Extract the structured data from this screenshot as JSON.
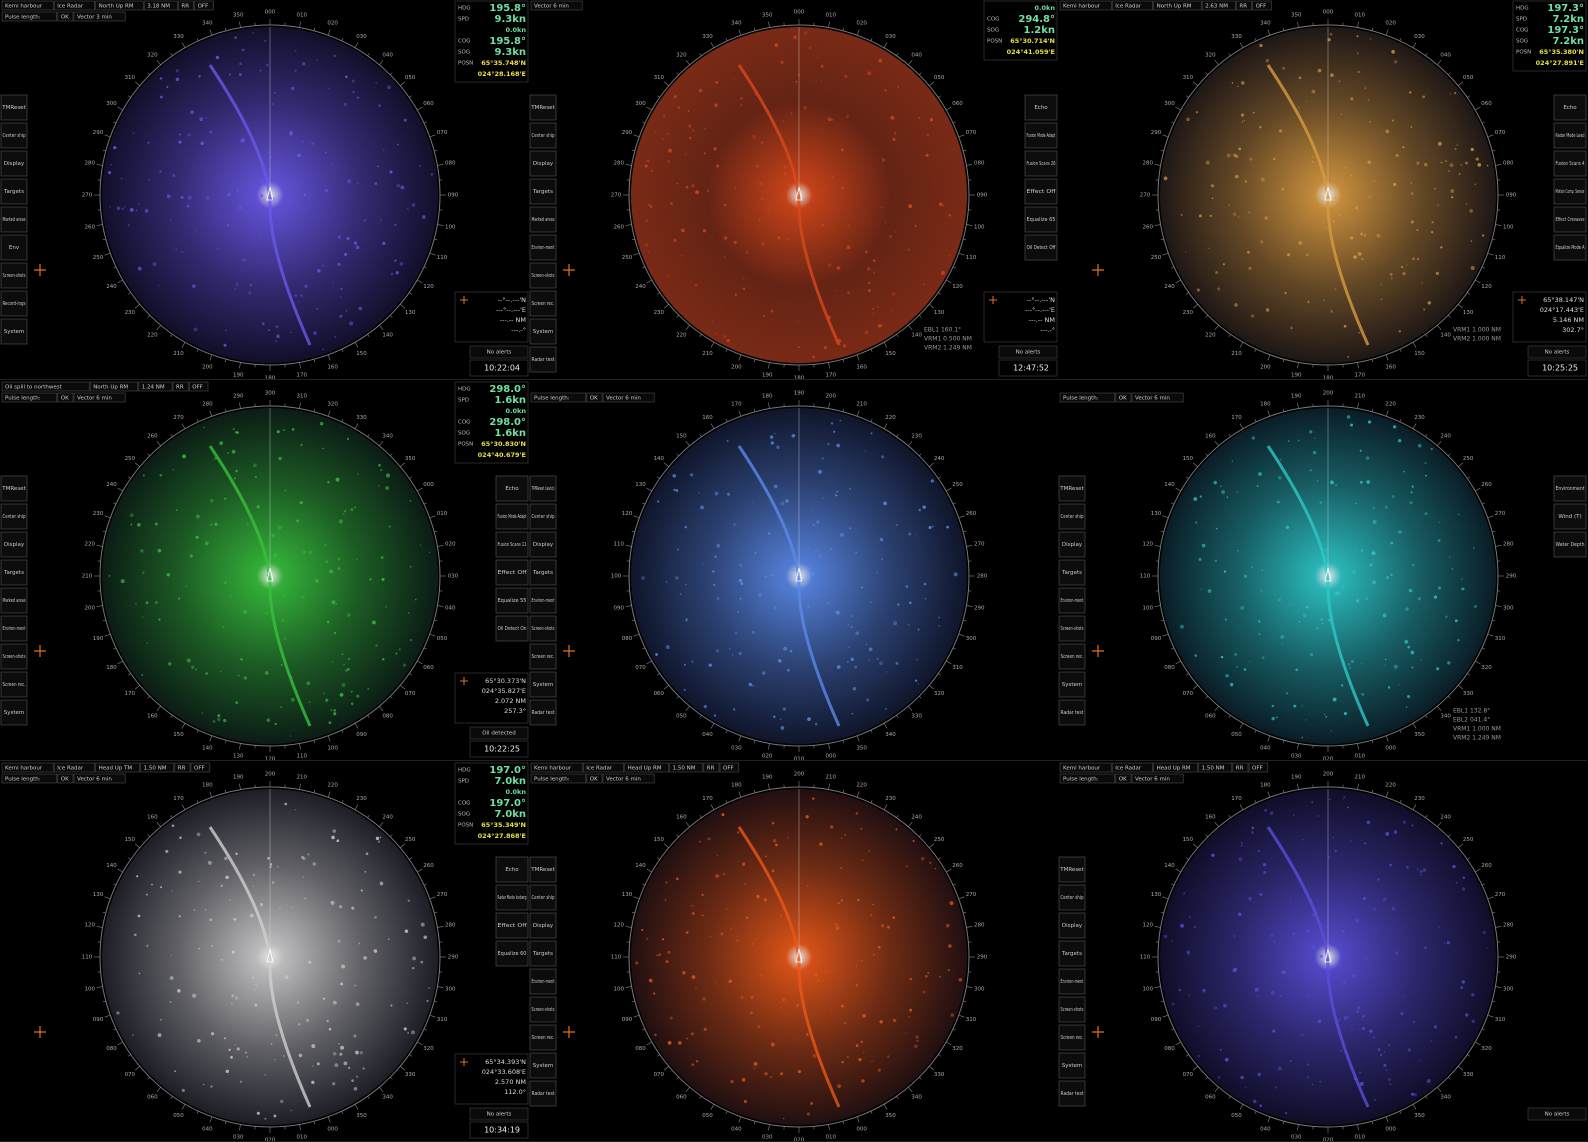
{
  "panels": [
    {
      "color": "#6a58e8",
      "compass_labels": [
        "000",
        "010",
        "020",
        "030",
        "040",
        "050",
        "060",
        "070",
        "080",
        "090",
        "100",
        "110",
        "120",
        "130",
        "140",
        "150",
        "160",
        "170",
        "180",
        "190",
        "200",
        "210",
        "220",
        "230",
        "240",
        "250",
        "260",
        "270",
        "280",
        "290",
        "300",
        "310",
        "320",
        "330",
        "340",
        "350"
      ],
      "top_bar": [
        "Kemi harbour",
        "Ice Radar",
        "North Up RM",
        "3.18 NM",
        "RR",
        "OFF"
      ],
      "pulse": [
        "Pulse length:",
        "OK",
        "Vector 3 min"
      ],
      "info": [
        {
          "label": "HDG",
          "value": "195.8°"
        },
        {
          "label": "SPD",
          "value": "9.3kn"
        },
        {
          "value": "0.0kn"
        },
        {
          "label": "COG",
          "value": "195.8°"
        },
        {
          "label": "SOG",
          "value": "9.3kn"
        },
        {
          "label": "POSN",
          "value": "65°35.748'N"
        },
        {
          "value": "024°28.168'E"
        }
      ],
      "menu": [
        "TMReset",
        "Center ship",
        "Display",
        "Targets",
        "Marked areas",
        "Env",
        "Screen-shots",
        "Record-ings",
        "System"
      ],
      "cursor": [
        "--°--.---'N",
        "---°--.---'E",
        "---.-- NM",
        "---.-°"
      ],
      "status": "No alerts",
      "time": "10:22:04"
    },
    {
      "color": "#d8481a",
      "compass_labels": [
        "000",
        "010",
        "020",
        "030",
        "040",
        "050",
        "060",
        "070",
        "080",
        "090",
        "100",
        "110",
        "120",
        "130",
        "140",
        "150",
        "160",
        "170",
        "180",
        "190",
        "200",
        "210",
        "220",
        "230",
        "240",
        "250",
        "260",
        "270",
        "280",
        "290",
        "300",
        "310",
        "320",
        "330",
        "340",
        "350"
      ],
      "top_bar": [
        "Vector 6 min"
      ],
      "info": [
        {
          "value": "0.0kn"
        },
        {
          "label": "COG",
          "value": "294.8°"
        },
        {
          "label": "SOG",
          "value": "1.2kn"
        },
        {
          "label": "POSN",
          "value": "65°30.714'N"
        },
        {
          "value": "024°41.059'E"
        }
      ],
      "menu": [
        "TMReset",
        "Center ship",
        "Display",
        "Targets",
        "Marked areas",
        "Environ-ment",
        "Screen-shots",
        "Screen rec.",
        "System",
        "Radar test"
      ],
      "side_menu": [
        "Echo",
        "Fusion Mode Adapt",
        "Fusion Scans 26",
        "Effect Off",
        "Equalize 65",
        "Oil Detect Off"
      ],
      "cursor": [
        "--°--.---'N",
        "---°--.---'E",
        "---.-- NM",
        "---.-°"
      ],
      "extra": [
        "EBL1 160.1°",
        "VRM1 0.500 NM",
        "VRM2 1.249 NM"
      ],
      "status": "No alerts",
      "time": "12:47:52"
    },
    {
      "color": "#d89a40",
      "compass_labels": [
        "000",
        "010",
        "020",
        "030",
        "040",
        "050",
        "060",
        "070",
        "080",
        "090",
        "100",
        "110",
        "120",
        "130",
        "140",
        "150",
        "160",
        "170",
        "180",
        "190",
        "200",
        "210",
        "220",
        "230",
        "240",
        "250",
        "260",
        "270",
        "280",
        "290",
        "300",
        "310",
        "320",
        "330",
        "340",
        "350"
      ],
      "top_bar": [
        "Kemi harbour",
        "Ice Radar",
        "North Up RM",
        "2.63 NM",
        "RR",
        "OFF"
      ],
      "info": [
        {
          "label": "HDG",
          "value": "197.3°"
        },
        {
          "label": "SPD",
          "value": "7.2kn"
        },
        {
          "label": "COG",
          "value": "197.3°"
        },
        {
          "label": "SOG",
          "value": "7.2kn"
        },
        {
          "label": "POSN",
          "value": "65°35.380'N"
        },
        {
          "value": "024°27.891'E"
        }
      ],
      "side_menu": [
        "Echo",
        "Radar Mode Lead",
        "Fusion Scans 4",
        "Motion Comp. Sensor",
        "Effect Crevasse",
        "Equalize Mode A"
      ],
      "cursor": [
        "65°38.147'N",
        "024°17.443'E",
        "5.146 NM",
        "302.7°"
      ],
      "extra": [
        "VRM1 1.000 NM",
        "VRM2 1.000 NM"
      ],
      "status": "No alerts",
      "time": "10:25:25"
    },
    {
      "color": "#38c03c",
      "compass_labels": [
        "300",
        "310",
        "320",
        "330",
        "340",
        "350",
        "000",
        "010",
        "020",
        "030",
        "040",
        "050",
        "060",
        "070",
        "080",
        "090",
        "100",
        "110",
        "120",
        "130",
        "140",
        "150",
        "160",
        "170",
        "180",
        "190",
        "200",
        "210",
        "220",
        "230",
        "240",
        "250",
        "260",
        "270",
        "280",
        "290"
      ],
      "top_bar": [
        "Oil spill to northwest",
        "North Up RM",
        "1.24 NM",
        "RR",
        "OFF"
      ],
      "pulse": [
        "Pulse length:",
        "OK",
        "Vector 6 min"
      ],
      "info": [
        {
          "label": "HDG",
          "value": "298.0°"
        },
        {
          "label": "SPD",
          "value": "1.6kn"
        },
        {
          "value": "0.0kn"
        },
        {
          "label": "COG",
          "value": "298.0°"
        },
        {
          "label": "SOG",
          "value": "1.6kn"
        },
        {
          "label": "POSN",
          "value": "65°30.830'N"
        },
        {
          "value": "024°40.679'E"
        }
      ],
      "menu": [
        "TMReset",
        "Center ship",
        "Display",
        "Targets",
        "Marked areas",
        "Environ-ment",
        "Screen-shots",
        "Screen rec.",
        "System"
      ],
      "side_menu": [
        "Echo",
        "Fusion Mode Adapt",
        "Fusion Scans 11",
        "Effect Off",
        "Equalize 55",
        "Oil Detect On"
      ],
      "cursor": [
        "65°30.373'N",
        "024°35.827'E",
        "2.072 NM",
        "257.3°"
      ],
      "status": "Oil detected",
      "time": "10:22:25"
    },
    {
      "color": "#5a8ae8",
      "compass_labels": [
        "190",
        "200",
        "210",
        "220",
        "230",
        "240",
        "250",
        "260",
        "270",
        "280",
        "290",
        "300",
        "310",
        "320",
        "330",
        "340",
        "350",
        "000",
        "010",
        "020",
        "030",
        "040",
        "050",
        "060",
        "070",
        "080",
        "090",
        "100",
        "110",
        "120",
        "130",
        "140",
        "150",
        "160",
        "170",
        "180"
      ],
      "pulse": [
        "Pulse length:",
        "OK",
        "Vector 6 min"
      ],
      "menu": [
        "TMReset (auto)",
        "Center ship",
        "Display",
        "Targets",
        "Environ-ment",
        "Screen-shots",
        "Screen rec.",
        "System",
        "Radar test"
      ]
    },
    {
      "color": "#2ec8c8",
      "compass_labels": [
        "200",
        "210",
        "220",
        "230",
        "240",
        "250",
        "260",
        "270",
        "280",
        "290",
        "300",
        "310",
        "320",
        "330",
        "340",
        "350",
        "000",
        "010",
        "020",
        "030",
        "040",
        "050",
        "060",
        "070",
        "080",
        "090",
        "100",
        "110",
        "120",
        "130",
        "140",
        "150",
        "160",
        "170",
        "180",
        "190"
      ],
      "pulse": [
        "Pulse length:",
        "OK",
        "Vector 6 min"
      ],
      "menu": [
        "TMReset",
        "Center ship",
        "Display",
        "Targets",
        "Environ-ment",
        "Screen-shots",
        "Screen rec.",
        "System",
        "Radar test"
      ],
      "side_menu": [
        "Environment",
        "Wind (T)",
        "Water Depth"
      ],
      "extra": [
        "EBL1 132.8°",
        "EBL2 041.4°",
        "VRM1 1.000 NM",
        "VRM2 1.249 NM"
      ]
    },
    {
      "color": "#cfcfcf",
      "compass_labels": [
        "200",
        "210",
        "220",
        "230",
        "240",
        "250",
        "260",
        "270",
        "280",
        "290",
        "300",
        "310",
        "320",
        "330",
        "340",
        "350",
        "000",
        "010",
        "020",
        "030",
        "040",
        "050",
        "060",
        "070",
        "080",
        "090",
        "100",
        "110",
        "120",
        "130",
        "140",
        "150",
        "160",
        "170",
        "180",
        "190"
      ],
      "top_bar": [
        "Kemi harbour",
        "Ice Radar",
        "Head Up TM",
        "1.50 NM",
        "RR",
        "OFF"
      ],
      "pulse": [
        "Pulse length:",
        "OK",
        "Vector 6 min"
      ],
      "info": [
        {
          "label": "HDG",
          "value": "197.0°"
        },
        {
          "label": "SPD",
          "value": "7.0kn"
        },
        {
          "value": "0.0kn"
        },
        {
          "label": "COG",
          "value": "197.0°"
        },
        {
          "label": "SOG",
          "value": "7.0kn"
        },
        {
          "label": "POSN",
          "value": "65°35.349'N"
        },
        {
          "value": "024°27.868'E"
        }
      ],
      "side_menu": [
        "Echo",
        "Radar Mode Iceberg",
        "Effect Off",
        "Equalize 60"
      ],
      "cursor": [
        "65°34.393'N",
        "024°33.608'E",
        "2.570 NM",
        "112.0°"
      ],
      "status": "No alerts",
      "time": "10:34:19"
    },
    {
      "color": "#ea5818",
      "compass_labels": [
        "200",
        "210",
        "220",
        "230",
        "240",
        "250",
        "260",
        "270",
        "280",
        "290",
        "300",
        "310",
        "320",
        "330",
        "340",
        "350",
        "000",
        "010",
        "020",
        "030",
        "040",
        "050",
        "060",
        "070",
        "080",
        "090",
        "100",
        "110",
        "120",
        "130",
        "140",
        "150",
        "160",
        "170",
        "180",
        "190"
      ],
      "top_bar": [
        "Kemi harbour",
        "Ice Radar",
        "Head Up RM",
        "1.50 NM",
        "RR",
        "OFF"
      ],
      "pulse": [
        "Pulse length:",
        "OK",
        "Vector 6 min"
      ],
      "menu": [
        "TMReset",
        "Center ship",
        "Display",
        "Targets",
        "Environ-ment",
        "Screen-shots",
        "Screen rec.",
        "System",
        "Radar test"
      ]
    },
    {
      "color": "#5a4ed8",
      "compass_labels": [
        "200",
        "210",
        "220",
        "230",
        "240",
        "250",
        "260",
        "270",
        "280",
        "290",
        "300",
        "310",
        "320",
        "330",
        "340",
        "350",
        "000",
        "010",
        "020",
        "030",
        "040",
        "050",
        "060",
        "070",
        "080",
        "090",
        "100",
        "110",
        "120",
        "130",
        "140",
        "150",
        "160",
        "170",
        "180",
        "190"
      ],
      "top_bar": [
        "Kemi harbour",
        "Ice Radar",
        "Head Up RM",
        "1.50 NM",
        "RR",
        "OFF"
      ],
      "pulse": [
        "Pulse length:",
        "OK",
        "Vector 6 min"
      ],
      "menu": [
        "TMReset",
        "Center ship",
        "Display",
        "Targets",
        "Environ-ment",
        "Screen-shots",
        "Screen rec.",
        "System",
        "Radar test"
      ],
      "status": "No alerts"
    }
  ]
}
